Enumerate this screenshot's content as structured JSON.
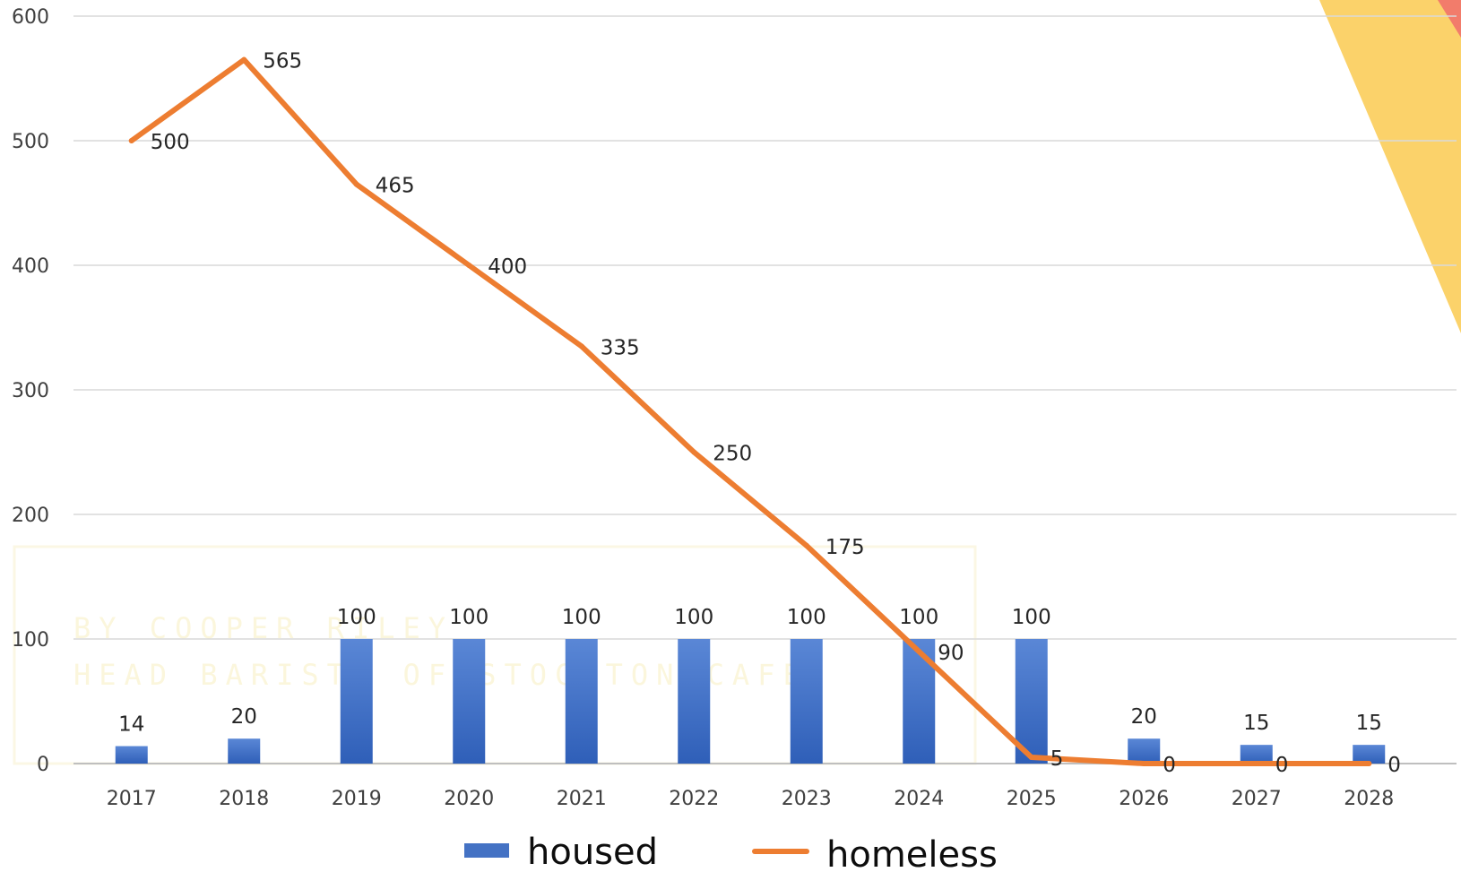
{
  "colors": {
    "housed": "#4472c4",
    "homeless": "#ed7d31",
    "grid": "#d9d9d9",
    "deco_yellow": "#fbd26a",
    "deco_red": "#f27c6b"
  },
  "watermark": {
    "line1": "BY COOPER RILEY",
    "line2": "HEAD BARISTA OF STOCKTON CAFE"
  },
  "chart_data": {
    "type": "bar",
    "categories": [
      "2017",
      "2018",
      "2019",
      "2020",
      "2021",
      "2022",
      "2023",
      "2024",
      "2025",
      "2026",
      "2027",
      "2028"
    ],
    "series": [
      {
        "name": "housed",
        "type": "bar",
        "values": [
          14,
          20,
          100,
          100,
          100,
          100,
          100,
          100,
          100,
          20,
          15,
          15
        ]
      },
      {
        "name": "homeless",
        "type": "line",
        "values": [
          500,
          565,
          465,
          400,
          335,
          250,
          175,
          90,
          5,
          0,
          0,
          0
        ]
      }
    ],
    "ylim": [
      0,
      600
    ],
    "yticks": [
      0,
      100,
      200,
      300,
      400,
      500,
      600
    ],
    "grid": true,
    "legend": "bottom"
  }
}
